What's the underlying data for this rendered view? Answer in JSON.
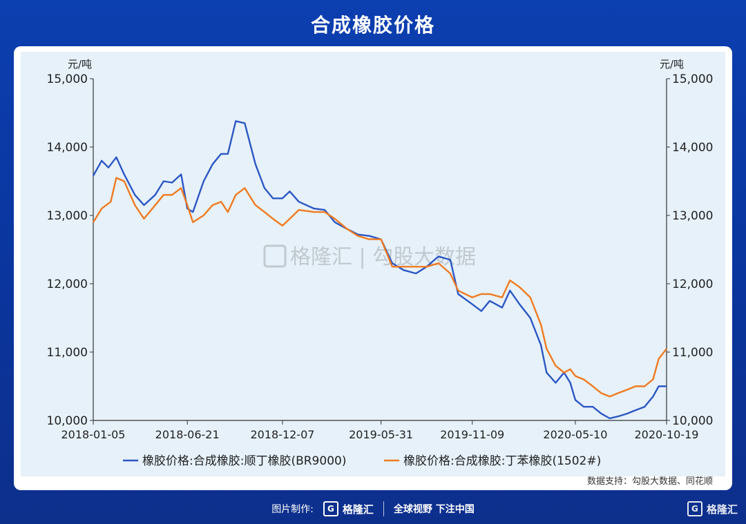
{
  "header": {
    "title": "合成橡胶价格"
  },
  "chart_data": {
    "type": "line",
    "unit_left": "元/吨",
    "unit_right": "元/吨",
    "x_ticks": [
      "2018-01-05",
      "2018-06-21",
      "2018-12-07",
      "2019-05-31",
      "2019-11-09",
      "2020-05-10",
      "2020-10-19"
    ],
    "ylim": [
      10000,
      15000
    ],
    "y_ticks": [
      10000,
      11000,
      12000,
      13000,
      14000,
      15000
    ],
    "y_tick_labels": [
      "10,000",
      "11,000",
      "12,000",
      "13,000",
      "14,000",
      "15,000"
    ],
    "legend_position": "bottom",
    "watermark": "格隆汇 | 勾股大数据",
    "series": [
      {
        "name": "橡胶价格:合成橡胶:顺丁橡胶(BR9000)",
        "color": "#2b56c4",
        "points": [
          [
            "2018-01-05",
            13580
          ],
          [
            "2018-01-20",
            13800
          ],
          [
            "2018-02-01",
            13700
          ],
          [
            "2018-02-15",
            13850
          ],
          [
            "2018-03-01",
            13600
          ],
          [
            "2018-03-20",
            13300
          ],
          [
            "2018-04-05",
            13150
          ],
          [
            "2018-04-25",
            13300
          ],
          [
            "2018-05-10",
            13500
          ],
          [
            "2018-05-25",
            13480
          ],
          [
            "2018-06-10",
            13600
          ],
          [
            "2018-06-21",
            13100
          ],
          [
            "2018-07-01",
            13050
          ],
          [
            "2018-07-20",
            13500
          ],
          [
            "2018-08-05",
            13750
          ],
          [
            "2018-08-20",
            13900
          ],
          [
            "2018-09-01",
            13900
          ],
          [
            "2018-09-15",
            14380
          ],
          [
            "2018-10-01",
            14350
          ],
          [
            "2018-10-20",
            13750
          ],
          [
            "2018-11-05",
            13400
          ],
          [
            "2018-11-20",
            13250
          ],
          [
            "2018-12-07",
            13250
          ],
          [
            "2018-12-20",
            13350
          ],
          [
            "2019-01-05",
            13200
          ],
          [
            "2019-02-01",
            13100
          ],
          [
            "2019-02-20",
            13080
          ],
          [
            "2019-03-10",
            12900
          ],
          [
            "2019-04-01",
            12800
          ],
          [
            "2019-04-20",
            12720
          ],
          [
            "2019-05-10",
            12700
          ],
          [
            "2019-05-31",
            12650
          ],
          [
            "2019-06-20",
            12300
          ],
          [
            "2019-07-10",
            12200
          ],
          [
            "2019-08-01",
            12150
          ],
          [
            "2019-08-20",
            12250
          ],
          [
            "2019-09-10",
            12400
          ],
          [
            "2019-10-01",
            12350
          ],
          [
            "2019-10-15",
            11850
          ],
          [
            "2019-11-09",
            11700
          ],
          [
            "2019-11-25",
            11600
          ],
          [
            "2019-12-10",
            11750
          ],
          [
            "2020-01-01",
            11650
          ],
          [
            "2020-01-15",
            11900
          ],
          [
            "2020-02-01",
            11700
          ],
          [
            "2020-02-20",
            11500
          ],
          [
            "2020-03-10",
            11100
          ],
          [
            "2020-03-20",
            10700
          ],
          [
            "2020-04-05",
            10550
          ],
          [
            "2020-04-20",
            10700
          ],
          [
            "2020-05-01",
            10550
          ],
          [
            "2020-05-10",
            10300
          ],
          [
            "2020-05-25",
            10200
          ],
          [
            "2020-06-10",
            10200
          ],
          [
            "2020-06-25",
            10100
          ],
          [
            "2020-07-10",
            10030
          ],
          [
            "2020-07-25",
            10060
          ],
          [
            "2020-08-10",
            10100
          ],
          [
            "2020-08-25",
            10150
          ],
          [
            "2020-09-10",
            10200
          ],
          [
            "2020-09-25",
            10350
          ],
          [
            "2020-10-05",
            10500
          ],
          [
            "2020-10-19",
            10500
          ]
        ]
      },
      {
        "name": "橡胶价格:合成橡胶:丁苯橡胶(1502#)",
        "color": "#f07a1e",
        "points": [
          [
            "2018-01-05",
            12900
          ],
          [
            "2018-01-20",
            13100
          ],
          [
            "2018-02-05",
            13200
          ],
          [
            "2018-02-15",
            13550
          ],
          [
            "2018-03-01",
            13500
          ],
          [
            "2018-03-20",
            13150
          ],
          [
            "2018-04-05",
            12950
          ],
          [
            "2018-04-25",
            13150
          ],
          [
            "2018-05-10",
            13300
          ],
          [
            "2018-05-25",
            13300
          ],
          [
            "2018-06-10",
            13400
          ],
          [
            "2018-06-21",
            13150
          ],
          [
            "2018-07-01",
            12900
          ],
          [
            "2018-07-20",
            13000
          ],
          [
            "2018-08-05",
            13150
          ],
          [
            "2018-08-20",
            13200
          ],
          [
            "2018-09-01",
            13050
          ],
          [
            "2018-09-15",
            13300
          ],
          [
            "2018-10-01",
            13400
          ],
          [
            "2018-10-20",
            13150
          ],
          [
            "2018-11-05",
            13050
          ],
          [
            "2018-11-20",
            12950
          ],
          [
            "2018-12-07",
            12850
          ],
          [
            "2018-12-20",
            12950
          ],
          [
            "2019-01-05",
            13080
          ],
          [
            "2019-02-01",
            13050
          ],
          [
            "2019-02-20",
            13050
          ],
          [
            "2019-03-10",
            12950
          ],
          [
            "2019-04-01",
            12800
          ],
          [
            "2019-04-20",
            12700
          ],
          [
            "2019-05-10",
            12650
          ],
          [
            "2019-05-31",
            12650
          ],
          [
            "2019-06-20",
            12250
          ],
          [
            "2019-07-10",
            12250
          ],
          [
            "2019-08-01",
            12250
          ],
          [
            "2019-08-20",
            12250
          ],
          [
            "2019-09-10",
            12300
          ],
          [
            "2019-10-01",
            12150
          ],
          [
            "2019-10-15",
            11900
          ],
          [
            "2019-11-09",
            11800
          ],
          [
            "2019-11-25",
            11850
          ],
          [
            "2019-12-10",
            11850
          ],
          [
            "2020-01-01",
            11800
          ],
          [
            "2020-01-15",
            12050
          ],
          [
            "2020-02-01",
            11950
          ],
          [
            "2020-02-20",
            11800
          ],
          [
            "2020-03-10",
            11400
          ],
          [
            "2020-03-20",
            11050
          ],
          [
            "2020-04-05",
            10800
          ],
          [
            "2020-04-20",
            10700
          ],
          [
            "2020-05-01",
            10750
          ],
          [
            "2020-05-10",
            10650
          ],
          [
            "2020-05-25",
            10600
          ],
          [
            "2020-06-10",
            10500
          ],
          [
            "2020-06-25",
            10400
          ],
          [
            "2020-07-10",
            10350
          ],
          [
            "2020-07-25",
            10400
          ],
          [
            "2020-08-10",
            10450
          ],
          [
            "2020-08-25",
            10500
          ],
          [
            "2020-09-10",
            10500
          ],
          [
            "2020-09-25",
            10600
          ],
          [
            "2020-10-05",
            10900
          ],
          [
            "2020-10-19",
            11050
          ]
        ]
      }
    ]
  },
  "source": {
    "label": "数据支持：勾股大数据、同花顺"
  },
  "footer": {
    "made_by": "图片制作:",
    "brand": "格隆汇",
    "slogan": "全球视野 下注中国",
    "corner_brand": "格隆汇"
  }
}
